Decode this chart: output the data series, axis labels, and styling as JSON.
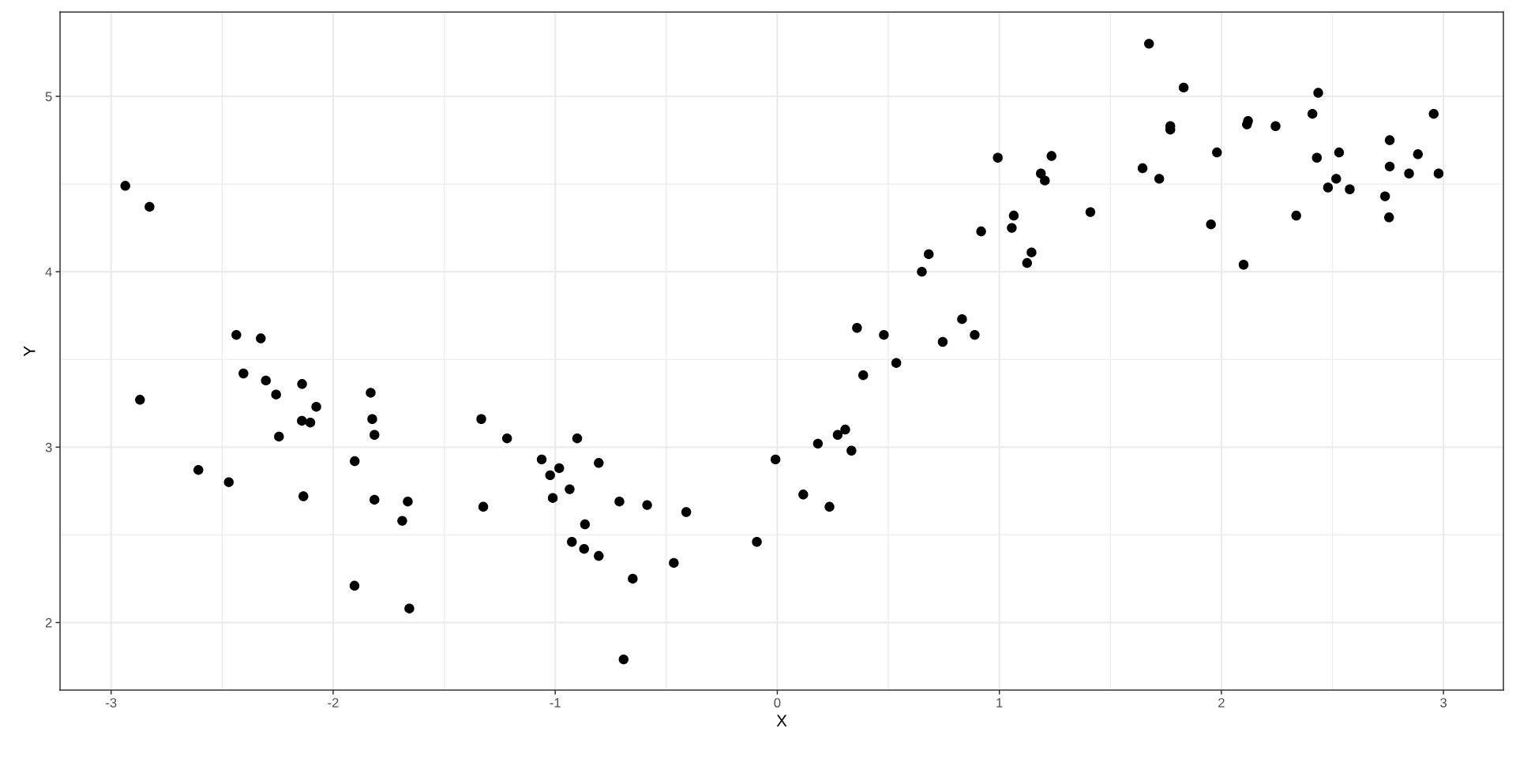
{
  "chart_data": {
    "type": "scatter",
    "xlabel": "X",
    "ylabel": "Y",
    "x": [
      -2.936,
      -2.87,
      -2.827,
      -2.607,
      -2.47,
      -2.436,
      -2.404,
      -2.326,
      -2.303,
      -2.257,
      -2.244,
      -2.141,
      -2.14,
      -2.134,
      -2.103,
      -2.076,
      -1.904,
      -1.903,
      -1.831,
      -1.824,
      -1.814,
      -1.814,
      -1.689,
      -1.664,
      -1.657,
      -1.333,
      -1.324,
      -1.217,
      -1.061,
      -1.023,
      -1.011,
      -0.982,
      -0.935,
      -0.925,
      -0.901,
      -0.87,
      -0.866,
      -0.804,
      -0.804,
      -0.711,
      -0.692,
      -0.651,
      -0.586,
      -0.466,
      -0.41,
      -0.092,
      -0.008,
      0.117,
      0.183,
      0.235,
      0.272,
      0.306,
      0.334,
      0.359,
      0.387,
      0.48,
      0.536,
      0.651,
      0.682,
      0.745,
      0.832,
      0.889,
      0.918,
      0.993,
      1.056,
      1.065,
      1.125,
      1.145,
      1.187,
      1.205,
      1.235,
      1.41,
      1.645,
      1.674,
      1.72,
      1.77,
      1.77,
      1.83,
      1.953,
      1.98,
      2.1,
      2.115,
      2.12,
      2.244,
      2.337,
      2.41,
      2.43,
      2.436,
      2.48,
      2.517,
      2.53,
      2.578,
      2.737,
      2.755,
      2.758,
      2.758,
      2.845,
      2.885,
      2.956,
      2.978
    ],
    "values": [
      4.49,
      3.27,
      4.37,
      2.87,
      2.8,
      3.64,
      3.42,
      3.62,
      3.38,
      3.3,
      3.06,
      3.15,
      3.36,
      2.72,
      3.14,
      3.23,
      2.21,
      2.92,
      3.31,
      3.16,
      3.07,
      2.7,
      2.58,
      2.69,
      2.08,
      3.16,
      2.66,
      3.05,
      2.93,
      2.84,
      2.71,
      2.88,
      2.76,
      2.46,
      3.05,
      2.42,
      2.56,
      2.91,
      2.38,
      2.69,
      1.79,
      2.25,
      2.67,
      2.34,
      2.63,
      2.46,
      2.93,
      2.73,
      3.02,
      2.66,
      3.07,
      3.1,
      2.98,
      3.68,
      3.41,
      3.64,
      3.48,
      4.0,
      4.1,
      3.6,
      3.73,
      3.64,
      4.23,
      4.65,
      4.25,
      4.32,
      4.05,
      4.11,
      4.56,
      4.52,
      4.66,
      4.34,
      4.59,
      5.3,
      4.53,
      4.83,
      4.81,
      5.05,
      4.27,
      4.68,
      4.04,
      4.84,
      4.86,
      4.83,
      4.32,
      4.9,
      4.65,
      5.02,
      4.48,
      4.53,
      4.68,
      4.47,
      4.43,
      4.31,
      4.75,
      4.6,
      4.56,
      4.67,
      4.9,
      4.56
    ],
    "color": "#000000",
    "marker": "circle",
    "xlim": [
      -3.23,
      3.27
    ],
    "ylim": [
      1.615,
      5.48
    ],
    "xticks": [
      -3,
      -2,
      -1,
      0,
      1,
      2,
      3
    ],
    "yticks": [
      2,
      3,
      4,
      5
    ],
    "grid": true
  }
}
